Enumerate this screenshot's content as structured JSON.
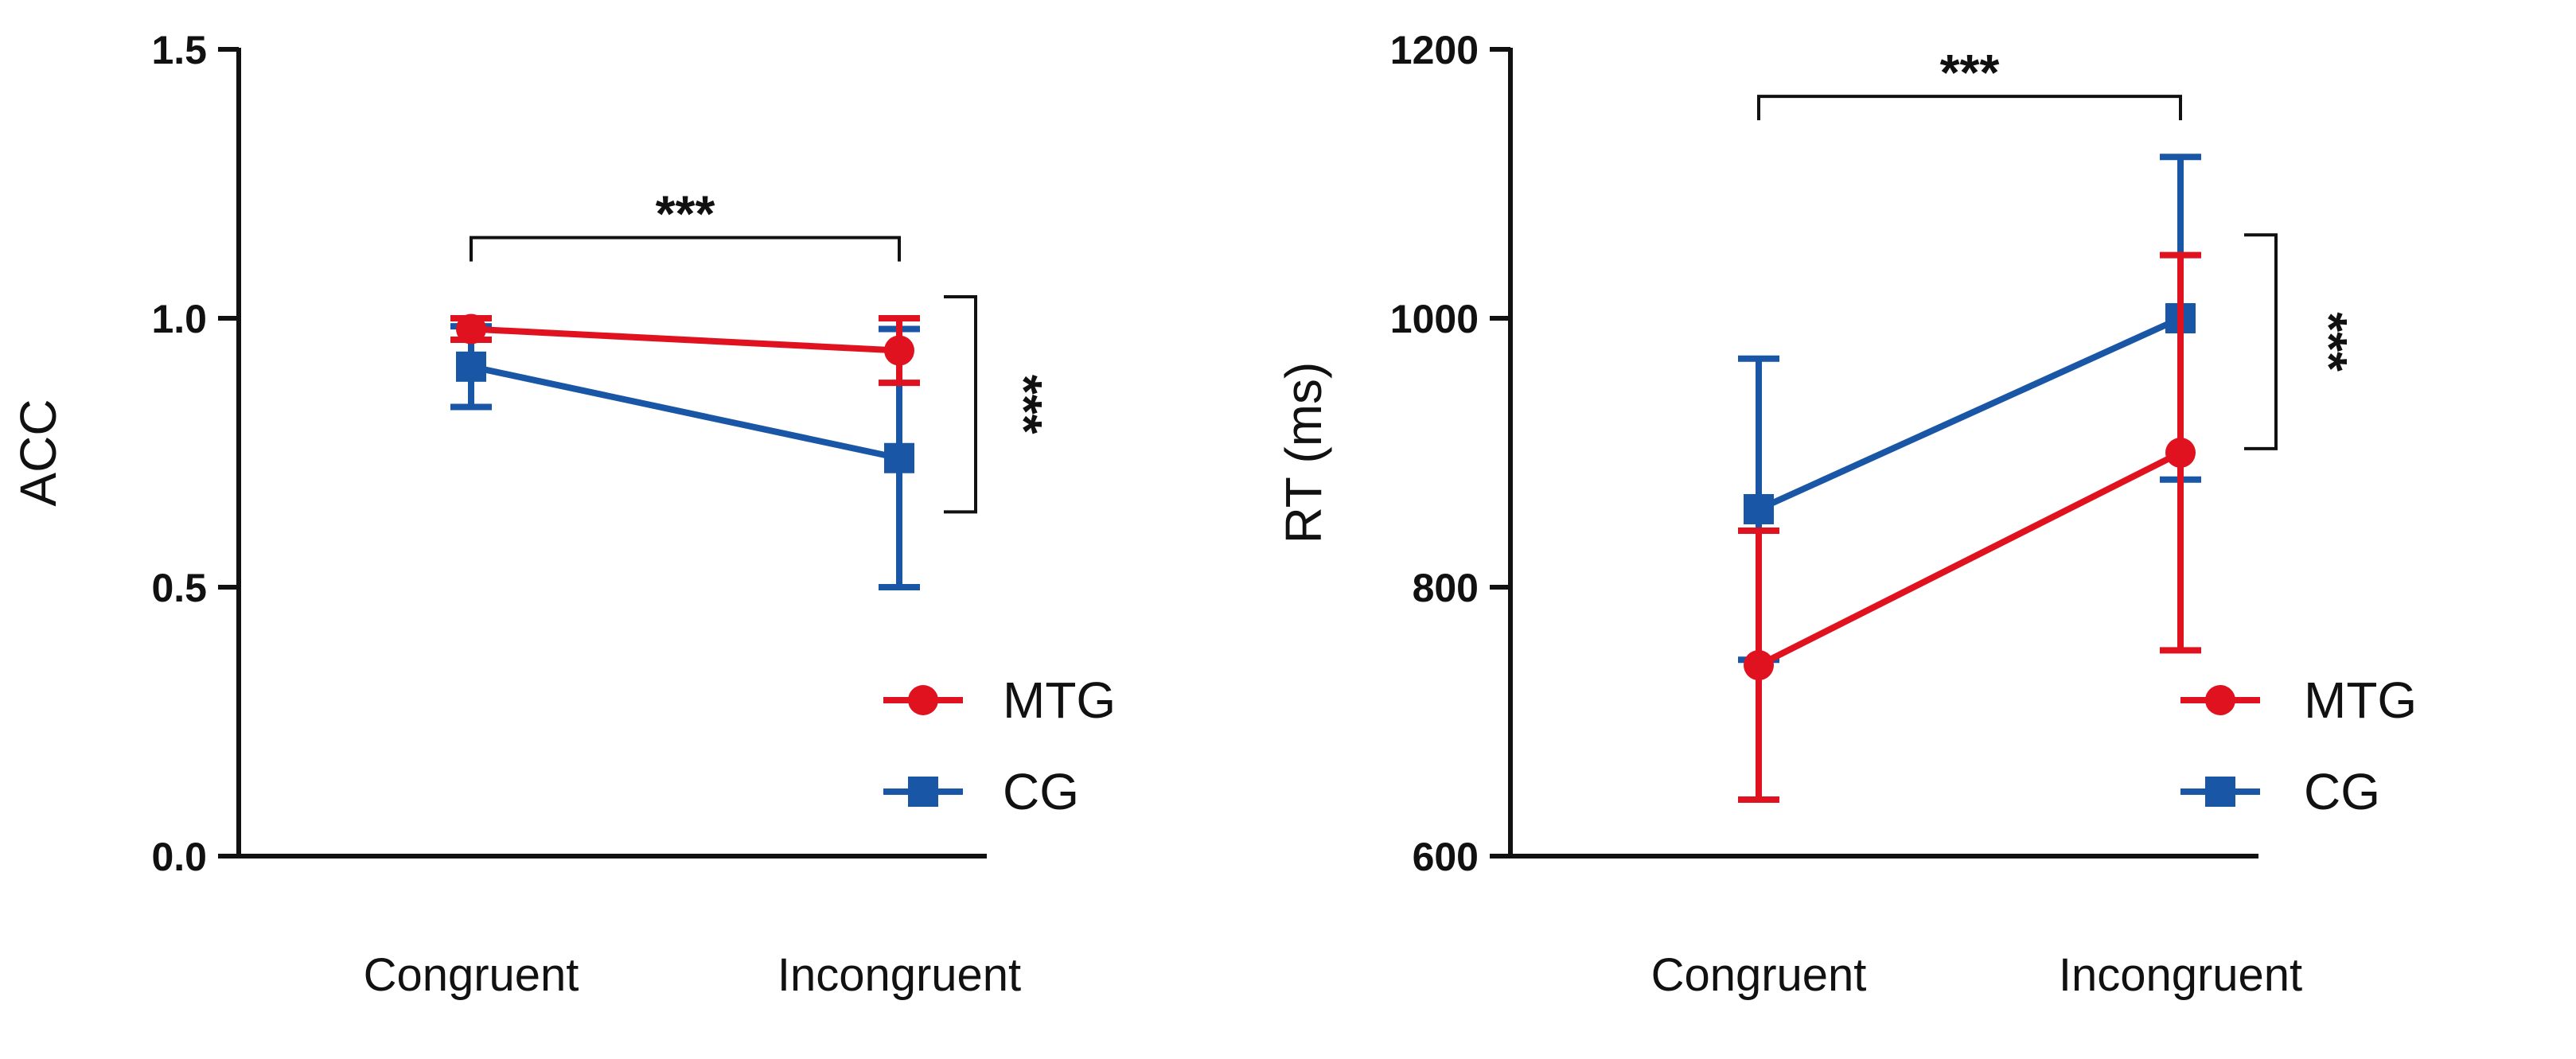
{
  "colors": {
    "MTG": "#e0121f",
    "CG": "#1957a6",
    "axis": "#111111"
  },
  "chart_data": [
    {
      "type": "line",
      "title": "",
      "xlabel": "",
      "ylabel": "ACC",
      "categories": [
        "Congruent",
        "Incongruent"
      ],
      "ylim": [
        0,
        1.5
      ],
      "yticks": [
        0.0,
        0.5,
        1.0,
        1.5
      ],
      "ytick_labels": [
        "0.0",
        "0.5",
        "1.0",
        "1.5"
      ],
      "series": [
        {
          "name": "MTG",
          "marker": "circle",
          "values": [
            0.98,
            0.94
          ],
          "error": [
            0.02,
            0.06
          ]
        },
        {
          "name": "CG",
          "marker": "square",
          "values": [
            0.91,
            0.74
          ],
          "error": [
            0.075,
            0.24
          ]
        }
      ],
      "significance": [
        {
          "type": "bracket",
          "label": "***",
          "between": [
            "Congruent",
            "Incongruent"
          ],
          "y": 1.15
        },
        {
          "type": "group",
          "label": "***",
          "category": "Incongruent",
          "range": [
            0.64,
            1.04
          ]
        }
      ],
      "legend": "bottom-right"
    },
    {
      "type": "line",
      "title": "",
      "xlabel": "",
      "ylabel": "RT (ms)",
      "categories": [
        "Congruent",
        "Incongruent"
      ],
      "ylim": [
        600,
        1200
      ],
      "yticks": [
        600,
        800,
        1000,
        1200
      ],
      "ytick_labels": [
        "600",
        "800",
        "1000",
        "1200"
      ],
      "series": [
        {
          "name": "MTG",
          "marker": "circle",
          "values": [
            742,
            900
          ],
          "error": [
            100,
            147
          ]
        },
        {
          "name": "CG",
          "marker": "square",
          "values": [
            858,
            1000
          ],
          "error": [
            112,
            120
          ]
        }
      ],
      "significance": [
        {
          "type": "bracket",
          "label": "***",
          "between": [
            "Congruent",
            "Incongruent"
          ],
          "y": 1165
        },
        {
          "type": "group",
          "label": "***",
          "category": "Incongruent",
          "range": [
            903,
            1062
          ]
        }
      ],
      "legend": "bottom-right"
    }
  ]
}
